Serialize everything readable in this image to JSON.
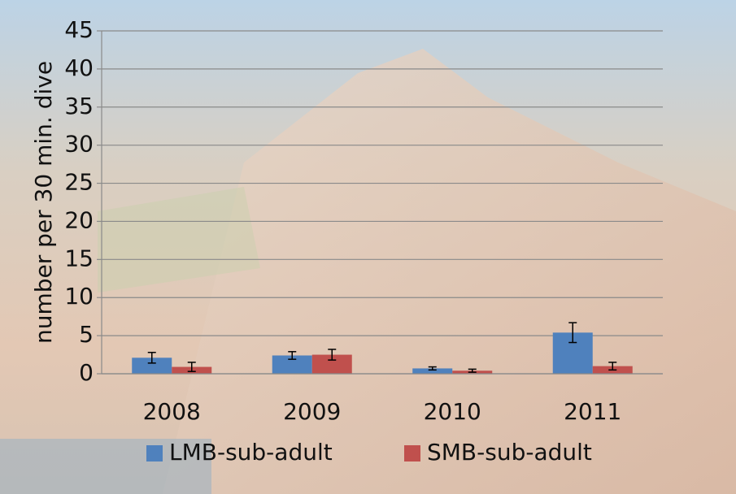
{
  "chart_data": {
    "type": "bar",
    "y_label": "number per 30 min. dive",
    "categories": [
      "2008",
      "2009",
      "2010",
      "2011"
    ],
    "series": [
      {
        "name": "LMB-sub-adult",
        "color": "#4f81bd",
        "values": [
          2.1,
          2.4,
          0.7,
          5.4
        ],
        "errors": [
          0.7,
          0.5,
          0.2,
          1.3
        ]
      },
      {
        "name": "SMB-sub-adult",
        "color": "#c0504d",
        "values": [
          0.9,
          2.5,
          0.4,
          1.0
        ],
        "errors": [
          0.6,
          0.7,
          0.2,
          0.5
        ]
      }
    ],
    "ylim": [
      0,
      45
    ],
    "yticks": [
      0,
      5,
      10,
      15,
      20,
      25,
      30,
      35,
      40,
      45
    ],
    "grid": true,
    "legend": "bottom"
  }
}
